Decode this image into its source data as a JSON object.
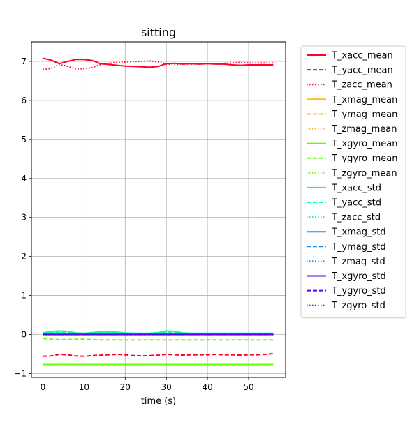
{
  "chart_data": {
    "type": "line",
    "title": "sitting",
    "xlabel": "time (s)",
    "ylabel": "",
    "xlim": [
      -2.8,
      59
    ],
    "ylim": [
      -1.1,
      7.5
    ],
    "xticks": [
      0,
      10,
      20,
      30,
      40,
      50
    ],
    "yticks": [
      -1,
      0,
      1,
      2,
      3,
      4,
      5,
      6,
      7
    ],
    "grid": true,
    "legend_position": "outside-right",
    "x": [
      0,
      2,
      4,
      6,
      8,
      10,
      12,
      14,
      16,
      18,
      20,
      22,
      24,
      26,
      28,
      30,
      32,
      34,
      36,
      38,
      40,
      42,
      44,
      46,
      48,
      50,
      52,
      54,
      56
    ],
    "series": [
      {
        "name": "T_xacc_mean",
        "color": "#ff0029",
        "dash": "solid",
        "values": [
          7.08,
          7.03,
          6.94,
          7.0,
          7.05,
          7.05,
          7.02,
          6.94,
          6.92,
          6.9,
          6.88,
          6.87,
          6.86,
          6.85,
          6.87,
          6.94,
          6.95,
          6.93,
          6.94,
          6.93,
          6.94,
          6.93,
          6.93,
          6.91,
          6.9,
          6.91,
          6.91,
          6.91,
          6.91
        ]
      },
      {
        "name": "T_yacc_mean",
        "color": "#ff0029",
        "dash": "dashed",
        "values": [
          -0.56,
          -0.55,
          -0.51,
          -0.52,
          -0.55,
          -0.56,
          -0.54,
          -0.53,
          -0.52,
          -0.51,
          -0.52,
          -0.54,
          -0.55,
          -0.54,
          -0.53,
          -0.51,
          -0.52,
          -0.53,
          -0.52,
          -0.52,
          -0.52,
          -0.51,
          -0.52,
          -0.52,
          -0.53,
          -0.52,
          -0.52,
          -0.51,
          -0.49
        ]
      },
      {
        "name": "T_zacc_mean",
        "color": "#ff0029",
        "dash": "dotted",
        "values": [
          6.79,
          6.82,
          6.92,
          6.87,
          6.81,
          6.81,
          6.84,
          6.92,
          6.95,
          6.97,
          6.98,
          7.0,
          7.0,
          7.01,
          6.99,
          6.93,
          6.92,
          6.94,
          6.93,
          6.94,
          6.94,
          6.94,
          6.95,
          6.96,
          6.97,
          6.96,
          6.96,
          6.96,
          6.96
        ]
      },
      {
        "name": "T_xmag_mean",
        "color": "#ffc000",
        "dash": "solid",
        "values": null
      },
      {
        "name": "T_ymag_mean",
        "color": "#ffc000",
        "dash": "dashed",
        "values": null
      },
      {
        "name": "T_zmag_mean",
        "color": "#ffc000",
        "dash": "dotted",
        "values": null
      },
      {
        "name": "T_xgyro_mean",
        "color": "#66ff00",
        "dash": "solid",
        "values": [
          -0.77,
          -0.77,
          -0.77,
          -0.77,
          -0.77,
          -0.77,
          -0.77,
          -0.77,
          -0.77,
          -0.77,
          -0.77,
          -0.77,
          -0.77,
          -0.77,
          -0.77,
          -0.77,
          -0.77,
          -0.77,
          -0.77,
          -0.77,
          -0.77,
          -0.77,
          -0.77,
          -0.77,
          -0.77,
          -0.77,
          -0.77,
          -0.77,
          -0.77
        ]
      },
      {
        "name": "T_ygyro_mean",
        "color": "#66ff00",
        "dash": "dashed",
        "values": [
          -0.1,
          -0.12,
          -0.13,
          -0.13,
          -0.12,
          -0.12,
          -0.13,
          -0.14,
          -0.14,
          -0.14,
          -0.14,
          -0.14,
          -0.14,
          -0.14,
          -0.14,
          -0.14,
          -0.14,
          -0.14,
          -0.14,
          -0.14,
          -0.14,
          -0.14,
          -0.14,
          -0.14,
          -0.14,
          -0.14,
          -0.14,
          -0.14,
          -0.14
        ]
      },
      {
        "name": "T_zgyro_mean",
        "color": "#66ff00",
        "dash": "dotted",
        "values": [
          -0.02,
          -0.02,
          -0.02,
          -0.02,
          -0.02,
          -0.02,
          -0.02,
          -0.02,
          -0.02,
          -0.02,
          -0.02,
          -0.02,
          -0.02,
          -0.02,
          -0.02,
          -0.02,
          -0.02,
          -0.02,
          -0.02,
          -0.02,
          -0.02,
          -0.02,
          -0.02,
          -0.02,
          -0.02,
          -0.02,
          -0.02,
          -0.02,
          -0.02
        ]
      },
      {
        "name": "T_xacc_std",
        "color": "#00ff9f",
        "dash": "solid",
        "values": [
          0.04,
          0.08,
          0.09,
          0.08,
          0.04,
          0.03,
          0.05,
          0.07,
          0.07,
          0.06,
          0.04,
          0.03,
          0.03,
          0.03,
          0.05,
          0.09,
          0.08,
          0.04,
          0.03,
          0.03,
          0.03,
          0.03,
          0.03,
          0.03,
          0.03,
          0.03,
          0.03,
          0.03,
          0.03
        ]
      },
      {
        "name": "T_yacc_std",
        "color": "#00ff9f",
        "dash": "dashed",
        "values": [
          0.03,
          0.05,
          0.06,
          0.05,
          0.03,
          0.02,
          0.04,
          0.05,
          0.05,
          0.04,
          0.03,
          0.02,
          0.02,
          0.02,
          0.04,
          0.06,
          0.05,
          0.03,
          0.02,
          0.02,
          0.02,
          0.02,
          0.02,
          0.02,
          0.02,
          0.02,
          0.02,
          0.02,
          0.02
        ]
      },
      {
        "name": "T_zacc_std",
        "color": "#00ff9f",
        "dash": "dotted",
        "values": [
          0.02,
          0.04,
          0.05,
          0.04,
          0.02,
          0.02,
          0.03,
          0.04,
          0.04,
          0.03,
          0.02,
          0.02,
          0.02,
          0.02,
          0.03,
          0.05,
          0.04,
          0.02,
          0.02,
          0.02,
          0.02,
          0.02,
          0.02,
          0.02,
          0.02,
          0.02,
          0.02,
          0.02,
          0.02
        ]
      },
      {
        "name": "T_xmag_std",
        "color": "#0096ff",
        "dash": "solid",
        "values": [
          0.02,
          0.02,
          0.02,
          0.02,
          0.02,
          0.02,
          0.02,
          0.02,
          0.02,
          0.02,
          0.02,
          0.02,
          0.02,
          0.02,
          0.02,
          0.02,
          0.02,
          0.02,
          0.02,
          0.02,
          0.02,
          0.02,
          0.02,
          0.02,
          0.02,
          0.02,
          0.02,
          0.02,
          0.02
        ]
      },
      {
        "name": "T_ymag_std",
        "color": "#0096ff",
        "dash": "dashed",
        "values": [
          0.01,
          0.01,
          0.01,
          0.01,
          0.01,
          0.01,
          0.01,
          0.01,
          0.01,
          0.01,
          0.01,
          0.01,
          0.01,
          0.01,
          0.01,
          0.01,
          0.01,
          0.01,
          0.01,
          0.01,
          0.01,
          0.01,
          0.01,
          0.01,
          0.01,
          0.01,
          0.01,
          0.01,
          0.01
        ]
      },
      {
        "name": "T_zmag_std",
        "color": "#0096ff",
        "dash": "dotted",
        "values": [
          0.01,
          0.01,
          0.01,
          0.01,
          0.01,
          0.01,
          0.01,
          0.01,
          0.01,
          0.01,
          0.01,
          0.01,
          0.01,
          0.01,
          0.01,
          0.01,
          0.01,
          0.01,
          0.01,
          0.01,
          0.01,
          0.01,
          0.01,
          0.01,
          0.01,
          0.01,
          0.01,
          0.01,
          0.01
        ]
      },
      {
        "name": "T_xgyro_std",
        "color": "#5a00ff",
        "dash": "solid",
        "values": [
          0.0,
          0.0,
          0.0,
          0.0,
          0.0,
          0.0,
          0.0,
          0.0,
          0.0,
          0.0,
          0.0,
          0.0,
          0.0,
          0.0,
          0.0,
          0.0,
          0.0,
          0.0,
          0.0,
          0.0,
          0.0,
          0.0,
          0.0,
          0.0,
          0.0,
          0.0,
          0.0,
          0.0,
          0.0
        ]
      },
      {
        "name": "T_ygyro_std",
        "color": "#5a00ff",
        "dash": "dashed",
        "values": [
          0.0,
          0.0,
          0.0,
          0.0,
          0.0,
          0.0,
          0.0,
          0.0,
          0.0,
          0.0,
          0.0,
          0.0,
          0.0,
          0.0,
          0.0,
          0.0,
          0.0,
          0.0,
          0.0,
          0.0,
          0.0,
          0.0,
          0.0,
          0.0,
          0.0,
          0.0,
          0.0,
          0.0,
          0.0
        ]
      },
      {
        "name": "T_zgyro_std",
        "color": "#5a00ff",
        "dash": "dotted",
        "values": [
          0.0,
          0.0,
          0.0,
          0.0,
          0.0,
          0.0,
          0.0,
          0.0,
          0.0,
          0.0,
          0.0,
          0.0,
          0.0,
          0.0,
          0.0,
          0.0,
          0.0,
          0.0,
          0.0,
          0.0,
          0.0,
          0.0,
          0.0,
          0.0,
          0.0,
          0.0,
          0.0,
          0.0,
          0.0
        ]
      }
    ]
  }
}
